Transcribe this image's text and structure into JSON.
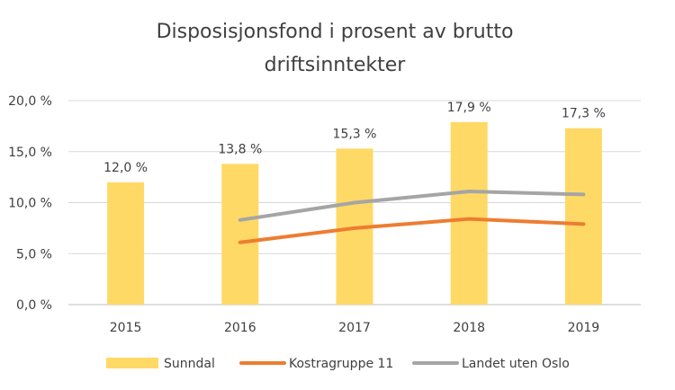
{
  "chart_data": {
    "type": "bar",
    "title_lines": [
      "Disposisjonsfond i prosent av brutto",
      "driftsinntekter"
    ],
    "categories": [
      "2015",
      "2016",
      "2017",
      "2018",
      "2019"
    ],
    "ylim": [
      0,
      20
    ],
    "yticks": [
      0,
      5,
      10,
      15,
      20
    ],
    "ytick_labels": [
      "0,0 %",
      "5,0 %",
      "10,0 %",
      "15,0 %",
      "20,0 %"
    ],
    "grid": true,
    "legend_position": "bottom",
    "series": [
      {
        "name": "Sunndal",
        "type": "bar",
        "color": "#FFD966",
        "values": [
          12.0,
          13.8,
          15.3,
          17.9,
          17.3
        ],
        "data_labels": [
          "12,0 %",
          "13,8 %",
          "15,3 %",
          "17,9 %",
          "17,3 %"
        ]
      },
      {
        "name": "Kostragruppe 11",
        "type": "line",
        "color": "#ED7D31",
        "values": [
          null,
          6.1,
          7.5,
          8.4,
          7.9
        ]
      },
      {
        "name": "Landet uten Oslo",
        "type": "line",
        "color": "#A5A5A5",
        "values": [
          null,
          8.3,
          10.0,
          11.1,
          10.8
        ]
      }
    ]
  }
}
